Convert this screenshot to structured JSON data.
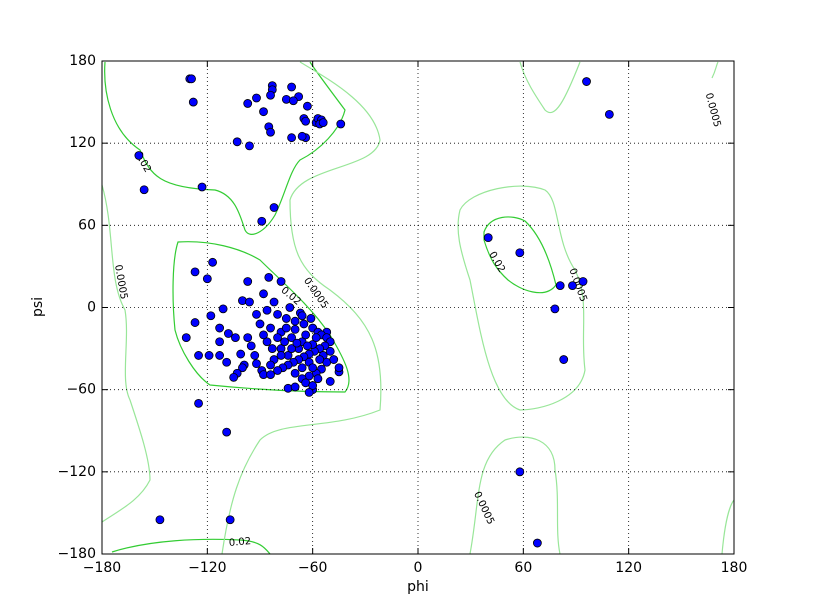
{
  "chart_data": {
    "type": "scatter",
    "xlabel": "phi",
    "ylabel": "psi",
    "xlim": [
      -180,
      180
    ],
    "ylim": [
      -180,
      180
    ],
    "xticks": [
      {
        "value": -180,
        "label": "−180"
      },
      {
        "value": -120,
        "label": "−120"
      },
      {
        "value": -60,
        "label": "−60"
      },
      0,
      60,
      120,
      180
    ],
    "yticks": [
      {
        "value": -180,
        "label": "−180"
      },
      {
        "value": -120,
        "label": "−120"
      },
      {
        "value": -60,
        "label": "−60"
      },
      0,
      60,
      120,
      180
    ],
    "grid": true,
    "color": "#0000ff",
    "contours": [
      {
        "level": 0.02,
        "color": "#33cc33"
      },
      {
        "level": 0.0005,
        "color": "#99e699"
      }
    ],
    "x": [
      -130,
      -129,
      -128,
      -83,
      -83,
      -72,
      -84,
      -92,
      -97,
      -68,
      -75,
      -71,
      -63,
      -88,
      -85,
      -84,
      -65,
      -64,
      -58,
      -57,
      -55,
      -56,
      -54,
      -44,
      -72,
      -64,
      -66,
      -103,
      -96,
      -159,
      -156,
      -123,
      -82,
      -89,
      96,
      109,
      40,
      58,
      94,
      81,
      88,
      78,
      83,
      58,
      68,
      -147,
      -107,
      -109,
      -125,
      -117,
      -127,
      -120,
      -85,
      -78,
      -97,
      -88,
      -82,
      -100,
      -96,
      -111,
      -118,
      -127,
      -132,
      -113,
      -108,
      -104,
      -113,
      -125,
      -119,
      -113,
      -109,
      -101,
      -99,
      -100,
      -103,
      -105,
      -93,
      -92,
      -89,
      -88,
      -84,
      -74,
      -60,
      -50,
      -45,
      -45,
      -52,
      -80,
      -75,
      -70,
      -65,
      -60,
      -57,
      -55,
      -52,
      -50,
      -53,
      -56,
      -59,
      -62,
      -65,
      -68,
      -71,
      -74,
      -77,
      -80,
      -83,
      -86,
      -88,
      -84,
      -78,
      -72,
      -66,
      -60,
      -54,
      -52,
      -55,
      -58,
      -62,
      -66,
      -70,
      -74,
      -78,
      -82,
      -68,
      -64,
      -58,
      -62,
      -56,
      -60,
      -66,
      -72,
      -76,
      -70,
      -80,
      -90,
      -92,
      -86,
      -64,
      -60,
      -57,
      -50,
      -48,
      -63,
      -69,
      -75,
      -61,
      -67,
      -73,
      -78,
      -84,
      -95,
      -97,
      -66,
      -70,
      -62
    ],
    "values": [
      167,
      167,
      150,
      162,
      159,
      161,
      155,
      153,
      149,
      154,
      152,
      151,
      147,
      143,
      132,
      128,
      138,
      136,
      135,
      138,
      137,
      134,
      135,
      134,
      124,
      124,
      125,
      121,
      118,
      111,
      86,
      88,
      73,
      63,
      165,
      141,
      51,
      40,
      19,
      16,
      16,
      -1,
      -38,
      -120,
      -172,
      -155,
      -155,
      -91,
      -70,
      33,
      26,
      21,
      22,
      19,
      19,
      10,
      4,
      5,
      4,
      -1,
      -6,
      -11,
      -22,
      -15,
      -19,
      -22,
      -25,
      -35,
      -35,
      -35,
      -40,
      -34,
      -42,
      -44,
      -48,
      -51,
      -35,
      -41,
      -46,
      -49,
      -49,
      -59,
      -60,
      -54,
      -47,
      -44,
      -18,
      -5,
      -8,
      -10,
      -12,
      -15,
      -18,
      -20,
      -22,
      -25,
      -28,
      -30,
      -32,
      -34,
      -36,
      -38,
      -40,
      -42,
      -44,
      -46,
      -30,
      -25,
      -20,
      -15,
      -18,
      -22,
      -25,
      -27,
      -35,
      -40,
      -45,
      -48,
      -50,
      -52,
      -48,
      -35,
      -30,
      -38,
      -30,
      -20,
      -22,
      -40,
      -38,
      -44,
      -44,
      -30,
      -25,
      -16,
      -22,
      -12,
      -5,
      -2,
      -55,
      -57,
      -52,
      -32,
      -38,
      -28,
      -26,
      -15,
      -8,
      -4,
      0,
      -35,
      -42,
      -28,
      -22,
      -6,
      -58,
      -62
    ]
  }
}
